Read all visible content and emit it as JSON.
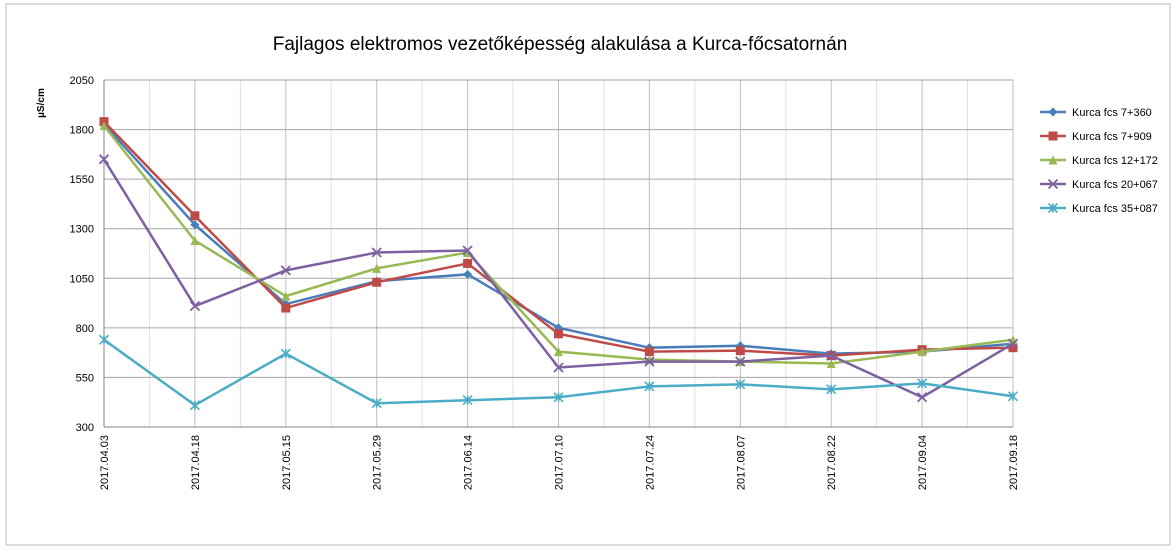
{
  "chart_data": {
    "type": "line",
    "title": "Fajlagos elektromos vezetőképesség alakulása a Kurca-főcsatornán",
    "y_label": "µS/cm",
    "categories": [
      "2017.04.03",
      "2017.04.18",
      "2017.05.15",
      "2017.05.29",
      "2017.06.14",
      "2017.07.10",
      "2017.07.24",
      "2017.08.07",
      "2017.08.22",
      "2017.09.04",
      "2017.09.18"
    ],
    "series": [
      {
        "name": "Kurca fcs 7+360",
        "color": "#4a7ebb",
        "marker": "diamond",
        "values": [
          1828,
          1320,
          920,
          1035,
          1070,
          800,
          700,
          710,
          670,
          680,
          720
        ]
      },
      {
        "name": "Kurca fcs 7+909",
        "color": "#be4b48",
        "marker": "square",
        "values": [
          1840,
          1365,
          900,
          1030,
          1125,
          770,
          680,
          685,
          660,
          690,
          700
        ]
      },
      {
        "name": "Kurca fcs 12+172",
        "color": "#98b954",
        "marker": "triangle",
        "values": [
          1820,
          1240,
          960,
          1100,
          1180,
          680,
          640,
          630,
          620,
          680,
          740
        ]
      },
      {
        "name": "Kurca fcs 20+067",
        "color": "#7d60a0",
        "marker": "x",
        "values": [
          1650,
          910,
          1090,
          1180,
          1190,
          600,
          630,
          630,
          660,
          450,
          720
        ]
      },
      {
        "name": "Kurca fcs 35+087",
        "color": "#4bacc6",
        "marker": "star",
        "values": [
          740,
          410,
          670,
          420,
          435,
          450,
          505,
          515,
          490,
          520,
          455
        ]
      }
    ],
    "ylim": [
      300,
      2050
    ],
    "yticks": [
      300,
      550,
      800,
      1050,
      1300,
      1550,
      1800,
      2050
    ],
    "grid": true,
    "legend": "right"
  }
}
